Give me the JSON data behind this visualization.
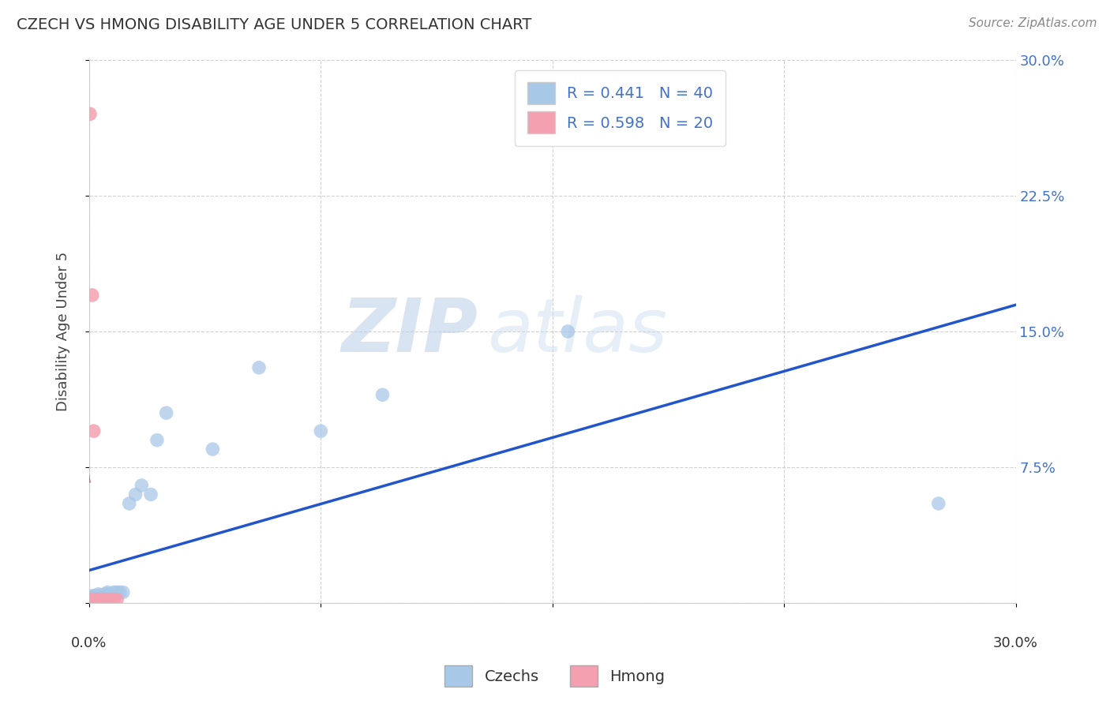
{
  "title": "CZECH VS HMONG DISABILITY AGE UNDER 5 CORRELATION CHART",
  "source": "Source: ZipAtlas.com",
  "ylabel": "Disability Age Under 5",
  "xlim": [
    0.0,
    0.3
  ],
  "ylim": [
    0.0,
    0.3
  ],
  "grid_color": "#cccccc",
  "background_color": "#ffffff",
  "watermark_zip": "ZIP",
  "watermark_atlas": "atlas",
  "czechs_color": "#a8c8e8",
  "hmong_color": "#f4a0b0",
  "czechs_line_color": "#2255cc",
  "hmong_line_color": "#e05575",
  "hmong_dash_color": "#ccaabb",
  "R_czechs": 0.441,
  "N_czechs": 40,
  "R_hmong": 0.598,
  "N_hmong": 20,
  "czechs_x": [
    0.0005,
    0.0005,
    0.001,
    0.001,
    0.001,
    0.001,
    0.001,
    0.0015,
    0.0015,
    0.002,
    0.002,
    0.002,
    0.003,
    0.003,
    0.003,
    0.003,
    0.003,
    0.004,
    0.004,
    0.005,
    0.005,
    0.006,
    0.006,
    0.007,
    0.008,
    0.009,
    0.01,
    0.011,
    0.013,
    0.015,
    0.017,
    0.02,
    0.022,
    0.025,
    0.04,
    0.055,
    0.075,
    0.095,
    0.155,
    0.275
  ],
  "czechs_y": [
    0.002,
    0.003,
    0.001,
    0.002,
    0.002,
    0.003,
    0.004,
    0.003,
    0.004,
    0.002,
    0.003,
    0.004,
    0.002,
    0.003,
    0.003,
    0.004,
    0.005,
    0.003,
    0.004,
    0.004,
    0.005,
    0.005,
    0.006,
    0.005,
    0.006,
    0.006,
    0.006,
    0.006,
    0.055,
    0.06,
    0.065,
    0.06,
    0.09,
    0.105,
    0.085,
    0.13,
    0.095,
    0.115,
    0.15,
    0.055
  ],
  "hmong_x": [
    0.0003,
    0.0005,
    0.0008,
    0.001,
    0.001,
    0.0012,
    0.0015,
    0.002,
    0.002,
    0.003,
    0.003,
    0.004,
    0.004,
    0.005,
    0.005,
    0.006,
    0.006,
    0.007,
    0.008,
    0.009
  ],
  "hmong_y": [
    0.27,
    0.002,
    0.002,
    0.17,
    0.002,
    0.002,
    0.095,
    0.002,
    0.002,
    0.002,
    0.002,
    0.002,
    0.002,
    0.002,
    0.002,
    0.002,
    0.002,
    0.002,
    0.002,
    0.002
  ]
}
